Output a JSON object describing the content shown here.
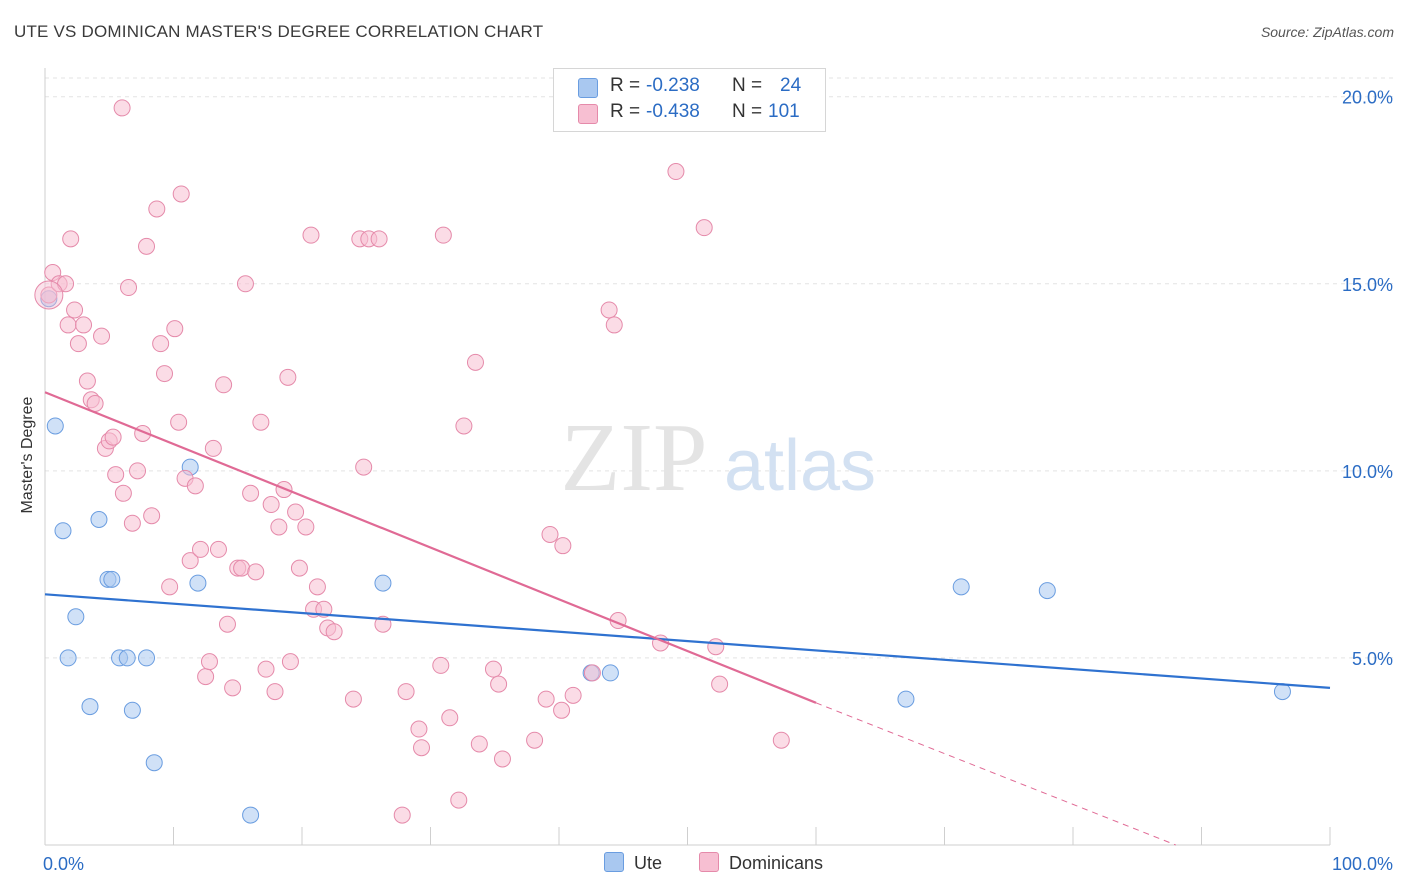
{
  "title": "UTE VS DOMINICAN MASTER'S DEGREE CORRELATION CHART",
  "source": "Source: ZipAtlas.com",
  "watermark": {
    "zip": "ZIP",
    "atlas": "atlas"
  },
  "legend": {
    "rows": [
      {
        "r_label": "R =",
        "r_value": "-0.238",
        "n_label": "N =",
        "n_value": "24",
        "color": "#a9c8f0",
        "stroke": "#6a9de0"
      },
      {
        "r_label": "R =",
        "r_value": "-0.438",
        "n_label": "N =",
        "n_value": "101",
        "color": "#f7bfd2",
        "stroke": "#e58aaa"
      }
    ]
  },
  "bottom_legend": [
    {
      "label": "Ute",
      "color": "#a9c8f0",
      "stroke": "#6a9de0"
    },
    {
      "label": "Dominicans",
      "color": "#f7bfd2",
      "stroke": "#e58aaa"
    }
  ],
  "chart_data": {
    "type": "scatter",
    "title": "UTE VS DOMINICAN MASTER'S DEGREE CORRELATION CHART",
    "xlabel": "",
    "ylabel": "Master's Degree",
    "xlim": [
      0,
      100
    ],
    "ylim": [
      0,
      20.5
    ],
    "x_tick_labels": [
      "0.0%",
      "100.0%"
    ],
    "y_ticks": [
      5,
      10,
      15,
      20
    ],
    "y_tick_labels": [
      "5.0%",
      "10.0%",
      "15.0%",
      "20.0%"
    ],
    "grid": true,
    "series": [
      {
        "name": "Ute",
        "color": "#6a9de0",
        "fill": "#a9c8f0",
        "points": [
          [
            0.3,
            14.6
          ],
          [
            0.8,
            11.2
          ],
          [
            1.4,
            8.4
          ],
          [
            1.8,
            5.0
          ],
          [
            2.4,
            6.1
          ],
          [
            3.5,
            3.7
          ],
          [
            4.2,
            8.7
          ],
          [
            4.9,
            7.1
          ],
          [
            5.2,
            7.1
          ],
          [
            5.8,
            5.0
          ],
          [
            6.4,
            5.0
          ],
          [
            6.8,
            3.6
          ],
          [
            7.9,
            5.0
          ],
          [
            8.5,
            2.2
          ],
          [
            11.3,
            10.1
          ],
          [
            11.9,
            7.0
          ],
          [
            16.0,
            0.8
          ],
          [
            26.3,
            7.0
          ],
          [
            42.5,
            4.6
          ],
          [
            44.0,
            4.6
          ],
          [
            67.0,
            3.9
          ],
          [
            71.3,
            6.9
          ],
          [
            78.0,
            6.8
          ],
          [
            96.3,
            4.1
          ]
        ],
        "trend": {
          "x": [
            0,
            100
          ],
          "y": [
            6.7,
            4.2
          ]
        }
      },
      {
        "name": "Dominicans",
        "color": "#e58aaa",
        "fill": "#f7bfd2",
        "points": [
          [
            0.3,
            14.7
          ],
          [
            0.6,
            15.3
          ],
          [
            1.1,
            15.0
          ],
          [
            1.6,
            15.0
          ],
          [
            1.8,
            13.9
          ],
          [
            2.0,
            16.2
          ],
          [
            2.3,
            14.3
          ],
          [
            2.6,
            13.4
          ],
          [
            3.0,
            13.9
          ],
          [
            3.3,
            12.4
          ],
          [
            3.6,
            11.9
          ],
          [
            3.9,
            11.8
          ],
          [
            4.4,
            13.6
          ],
          [
            4.7,
            10.6
          ],
          [
            5.0,
            10.8
          ],
          [
            5.3,
            10.9
          ],
          [
            5.5,
            9.9
          ],
          [
            6.1,
            9.4
          ],
          [
            6.5,
            14.9
          ],
          [
            6.8,
            8.6
          ],
          [
            7.2,
            10.0
          ],
          [
            7.6,
            11.0
          ],
          [
            7.9,
            16.0
          ],
          [
            8.3,
            8.8
          ],
          [
            8.7,
            17.0
          ],
          [
            9.0,
            13.4
          ],
          [
            9.3,
            12.6
          ],
          [
            9.7,
            6.9
          ],
          [
            10.1,
            13.8
          ],
          [
            10.4,
            11.3
          ],
          [
            10.6,
            17.4
          ],
          [
            10.9,
            9.8
          ],
          [
            11.3,
            7.6
          ],
          [
            11.7,
            9.6
          ],
          [
            12.1,
            7.9
          ],
          [
            12.5,
            4.5
          ],
          [
            12.8,
            4.9
          ],
          [
            13.1,
            10.6
          ],
          [
            13.5,
            7.9
          ],
          [
            13.9,
            12.3
          ],
          [
            14.2,
            5.9
          ],
          [
            14.6,
            4.2
          ],
          [
            15.0,
            7.4
          ],
          [
            15.3,
            7.4
          ],
          [
            15.6,
            15.0
          ],
          [
            16.0,
            9.4
          ],
          [
            16.4,
            7.3
          ],
          [
            16.8,
            11.3
          ],
          [
            17.2,
            4.7
          ],
          [
            17.6,
            9.1
          ],
          [
            17.9,
            4.1
          ],
          [
            18.2,
            8.5
          ],
          [
            18.6,
            9.5
          ],
          [
            18.9,
            12.5
          ],
          [
            19.1,
            4.9
          ],
          [
            19.5,
            8.9
          ],
          [
            19.8,
            7.4
          ],
          [
            20.3,
            8.5
          ],
          [
            20.7,
            16.3
          ],
          [
            20.9,
            6.3
          ],
          [
            21.2,
            6.9
          ],
          [
            21.7,
            6.3
          ],
          [
            22.0,
            5.8
          ],
          [
            22.5,
            5.7
          ],
          [
            24.0,
            3.9
          ],
          [
            24.5,
            16.2
          ],
          [
            24.8,
            10.1
          ],
          [
            25.2,
            16.2
          ],
          [
            26.3,
            5.9
          ],
          [
            27.8,
            0.8
          ],
          [
            28.1,
            4.1
          ],
          [
            29.1,
            3.1
          ],
          [
            29.3,
            2.6
          ],
          [
            31.0,
            16.3
          ],
          [
            30.8,
            4.8
          ],
          [
            31.5,
            3.4
          ],
          [
            32.2,
            1.2
          ],
          [
            32.6,
            11.2
          ],
          [
            33.5,
            12.9
          ],
          [
            33.8,
            2.7
          ],
          [
            34.9,
            4.7
          ],
          [
            35.3,
            4.3
          ],
          [
            35.6,
            2.3
          ],
          [
            38.1,
            2.8
          ],
          [
            39.0,
            3.9
          ],
          [
            39.3,
            8.3
          ],
          [
            40.3,
            8.0
          ],
          [
            40.2,
            3.6
          ],
          [
            41.1,
            4.0
          ],
          [
            42.6,
            4.6
          ],
          [
            43.9,
            14.3
          ],
          [
            44.3,
            13.9
          ],
          [
            44.6,
            6.0
          ],
          [
            47.9,
            5.4
          ],
          [
            49.1,
            18.0
          ],
          [
            51.3,
            16.5
          ],
          [
            52.2,
            5.3
          ],
          [
            52.5,
            4.3
          ],
          [
            57.3,
            2.8
          ],
          [
            26.0,
            16.2
          ],
          [
            6.0,
            19.7
          ]
        ],
        "trend": {
          "x": [
            0,
            60
          ],
          "y": [
            12.1,
            3.8
          ]
        },
        "trend_extension": {
          "x": [
            60,
            88
          ],
          "y": [
            3.8,
            0.0
          ]
        }
      }
    ]
  }
}
